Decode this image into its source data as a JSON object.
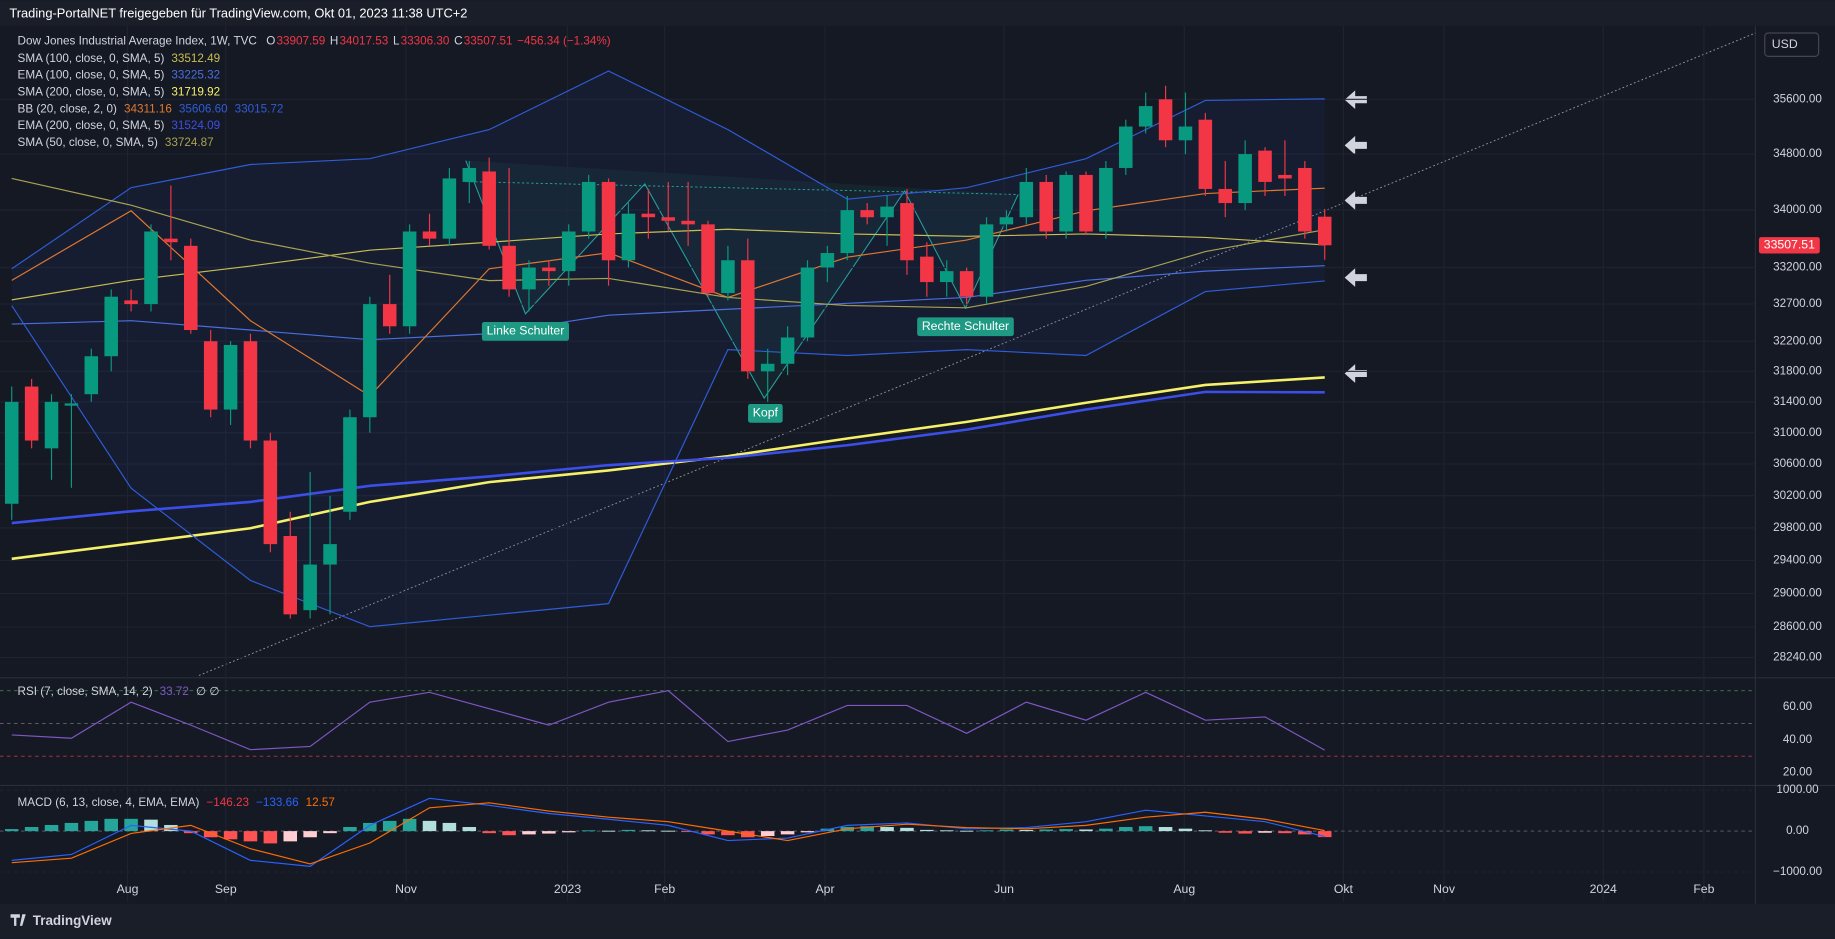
{
  "ui": {
    "header": "Trading-PortalNET freigegeben für TradingView.com, Okt 01, 2023 11:38 UTC+2",
    "currency": "USD",
    "brand": "TradingView"
  },
  "chart_data": {
    "type": "candlestick",
    "symbol": "Dow Jones Industrial Average Index, 1W, TVC",
    "ohlc_readout": [
      {
        "key": "O",
        "value": "33907.59"
      },
      {
        "key": "H",
        "value": "34017.53"
      },
      {
        "key": "L",
        "value": "33306.30"
      },
      {
        "key": "C",
        "value": "33507.51"
      }
    ],
    "change": "−456.34 (−1.34%)",
    "up_color": "#089981",
    "down_color": "#f23645",
    "open": [
      30100,
      31600,
      30800,
      31350,
      31500,
      32000,
      32750,
      32700,
      33600,
      33500,
      32200,
      31300,
      32200,
      30900,
      29700,
      28800,
      29350,
      30000,
      31200,
      32700,
      32400,
      33700,
      33600,
      34400,
      34550,
      33500,
      32900,
      33200,
      33150,
      33700,
      34400,
      33300,
      33950,
      33900,
      33850,
      33800,
      32850,
      33300,
      31800,
      31900,
      32250,
      33200,
      33400,
      34000,
      33900,
      34100,
      33350,
      33000,
      33150,
      32800,
      33800,
      33900,
      34400,
      33700,
      34500,
      33700,
      34600,
      35200,
      35600,
      35000,
      35300,
      34300,
      34100,
      34850,
      34500,
      34600,
      33907.59
    ],
    "high": [
      31600,
      31700,
      31500,
      31500,
      32100,
      32900,
      32900,
      33800,
      34350,
      33600,
      32350,
      32200,
      32300,
      31000,
      30000,
      30500,
      30200,
      31300,
      32800,
      33100,
      33800,
      33950,
      34600,
      34700,
      34750,
      34600,
      33300,
      33300,
      33800,
      34500,
      34450,
      34100,
      34300,
      34400,
      34400,
      33850,
      33500,
      33600,
      32100,
      32400,
      33300,
      33500,
      34200,
      34100,
      34200,
      34300,
      33550,
      33300,
      33200,
      33900,
      34000,
      34600,
      34500,
      34550,
      34550,
      34700,
      35300,
      35700,
      35800,
      35700,
      35400,
      34700,
      35000,
      34900,
      35000,
      34700,
      34017.53
    ],
    "low": [
      29900,
      30800,
      30400,
      30300,
      31400,
      31800,
      32600,
      32600,
      33300,
      32300,
      31200,
      31100,
      30800,
      29500,
      28700,
      28700,
      28750,
      29900,
      31000,
      32300,
      32300,
      33500,
      33500,
      34100,
      33450,
      32800,
      32600,
      32950,
      32950,
      33600,
      32950,
      33200,
      33600,
      33700,
      33500,
      32800,
      32750,
      31700,
      31400,
      31750,
      32200,
      33000,
      33300,
      33800,
      33500,
      33100,
      32800,
      32800,
      32700,
      32700,
      33700,
      33800,
      33600,
      33600,
      33650,
      33600,
      34500,
      35100,
      34900,
      34800,
      34200,
      33900,
      34000,
      34200,
      34200,
      33600,
      33306.3
    ],
    "close": [
      31400,
      30900,
      31400,
      31380,
      32000,
      32800,
      32700,
      33700,
      33550,
      32350,
      31300,
      32150,
      30900,
      29600,
      28750,
      29350,
      29600,
      31200,
      32700,
      32400,
      33700,
      33600,
      34450,
      34600,
      33500,
      32900,
      33200,
      33150,
      33700,
      34400,
      33300,
      33950,
      33900,
      33850,
      33800,
      32850,
      33300,
      31800,
      31900,
      32250,
      33200,
      33400,
      34000,
      33900,
      34050,
      33300,
      33000,
      33150,
      32800,
      33800,
      33900,
      34400,
      33700,
      34500,
      33700,
      34600,
      35200,
      35500,
      35000,
      35200,
      34300,
      34100,
      34800,
      34400,
      34450,
      33700,
      33507.51
    ],
    "log_scale": true,
    "ylim": [
      28030,
      36700
    ],
    "yticks": [
      {
        "value": 35600,
        "label": "35600.00"
      },
      {
        "value": 34800,
        "label": "34800.00"
      },
      {
        "value": 34000,
        "label": "34000.00"
      },
      {
        "value": 33200,
        "label": "33200.00"
      },
      {
        "value": 32700,
        "label": "32700.00"
      },
      {
        "value": 32200,
        "label": "32200.00"
      },
      {
        "value": 31800,
        "label": "31800.00"
      },
      {
        "value": 31400,
        "label": "31400.00"
      },
      {
        "value": 31000,
        "label": "31000.00"
      },
      {
        "value": 30600,
        "label": "30600.00"
      },
      {
        "value": 30200,
        "label": "30200.00"
      },
      {
        "value": 29800,
        "label": "29800.00"
      },
      {
        "value": 29400,
        "label": "29400.00"
      },
      {
        "value": 29000,
        "label": "29000.00"
      },
      {
        "value": 28600,
        "label": "28600.00"
      },
      {
        "value": 28240,
        "label": "28240.00"
      }
    ],
    "xlim": [
      -0.59,
      87.65
    ],
    "xticks": [
      {
        "value": 5.82,
        "label": "Aug"
      },
      {
        "value": 10.76,
        "label": "Sep"
      },
      {
        "value": 19.82,
        "label": "Nov"
      },
      {
        "value": 27.94,
        "label": "2023"
      },
      {
        "value": 32.82,
        "label": "Feb"
      },
      {
        "value": 40.88,
        "label": "Apr"
      },
      {
        "value": 49.88,
        "label": "Jun"
      },
      {
        "value": 58.94,
        "label": "Aug"
      },
      {
        "value": 66.94,
        "label": "Okt"
      },
      {
        "value": 72.0,
        "label": "Nov"
      },
      {
        "value": 80.0,
        "label": "2024"
      },
      {
        "value": 85.06,
        "label": "Feb"
      }
    ],
    "grid": true,
    "annotations": [
      "Linke Schulter",
      "Kopf",
      "Rechte Schulter"
    ],
    "overlay_x": [
      0,
      6,
      12,
      18,
      24,
      30,
      36,
      42,
      48,
      54,
      60,
      66
    ],
    "overlays": [
      {
        "name": "SMA (100, close, 0, SMA, 5)",
        "readout": "33512.49",
        "color": "#c8be52",
        "width": 1,
        "values": [
          32757,
          33024,
          33220,
          33440,
          33550,
          33666,
          33731,
          33666,
          33633,
          33666,
          33617,
          33512.49
        ]
      },
      {
        "name": "EMA (100, close, 0, SMA, 5)",
        "readout": "33225.32",
        "color": "#4a6ee0",
        "width": 1,
        "values": [
          32430,
          32475,
          32350,
          32220,
          32300,
          32550,
          32630,
          32710,
          32790,
          33024,
          33150,
          33225.32
        ]
      },
      {
        "name": "SMA (200, close, 0, SMA, 5)",
        "readout": "31719.92",
        "color": "#f5f06a",
        "width": 2.2,
        "values": [
          29420,
          29607,
          29796,
          30123,
          30371,
          30519,
          30701,
          30926,
          31140,
          31388,
          31621,
          31719.92
        ]
      },
      {
        "name": "BB (20, close, 2, 0)",
        "readouts": [
          "34311.16",
          "35606.60",
          "33015.72"
        ],
        "fill": "#2f5cd8",
        "lines": [
          {
            "color": "#e0782f",
            "width": 1,
            "values": [
              33024,
              33991,
              32475,
              31478,
              33183,
              33404,
              32790,
              33343,
              33580,
              33991,
              34235,
              34311.16
            ]
          },
          {
            "color": "#2f5cd8",
            "width": 1,
            "values": [
              33183,
              34318,
              34650,
              34734,
              35155,
              36020,
              35155,
              34155,
              34318,
              34734,
              35583,
              35606.6
            ]
          },
          {
            "color": "#2f5cd8",
            "width": 1,
            "values": [
              32680,
              30295,
              29157,
              28603,
              28740,
              28878,
              32088,
              32010,
              32088,
              32010,
              32870,
              33015.72
            ]
          }
        ]
      },
      {
        "name": "EMA (200, close, 0, SMA, 5)",
        "readout": "31524.09",
        "color": "#3b4fe8",
        "width": 2.2,
        "values": [
          29860,
          30006,
          30123,
          30325,
          30443,
          30586,
          30680,
          30840,
          31040,
          31300,
          31530,
          31524.09
        ]
      },
      {
        "name": "SMA (50, close, 0, SMA, 5)",
        "readout": "33724.87",
        "color": "#a8a252",
        "width": 1,
        "values": [
          34450,
          34070,
          33580,
          33260,
          33020,
          33050,
          32790,
          32680,
          32650,
          32940,
          33420,
          33724.87
        ]
      }
    ],
    "rsi": {
      "name": "RSI (7, close, SMA, 14, 2)",
      "readout": "33.72",
      "extra": "∅ ∅",
      "color": "#7e57c2",
      "x": [
        0,
        3,
        6,
        9,
        12,
        15,
        18,
        21,
        24,
        27,
        30,
        33,
        36,
        39,
        42,
        45,
        48,
        51,
        54,
        57,
        60,
        63,
        66
      ],
      "values": [
        43,
        41,
        63,
        49,
        34,
        36,
        63,
        69,
        59,
        49,
        63,
        70,
        39,
        46,
        61,
        61,
        44,
        63,
        52,
        69,
        52,
        54,
        33.72
      ],
      "ylim": [
        12.9,
        75
      ],
      "yticks": [
        {
          "value": 60,
          "label": "60.00"
        },
        {
          "value": 40,
          "label": "40.00"
        },
        {
          "value": 20,
          "label": "20.00"
        }
      ],
      "levels": [
        70,
        50,
        30
      ],
      "level_colors": [
        "#4caf50",
        "#787b86",
        "#f23645"
      ]
    },
    "macd": {
      "name": "MACD (6, 13, close, 4, EMA, EMA)",
      "readouts": [
        "−146.23",
        "−133.66",
        "12.57"
      ],
      "readout_colors": [
        "#f23645",
        "#2962ff",
        "#ff6d00"
      ],
      "x": [
        0,
        3,
        6,
        9,
        12,
        15,
        18,
        21,
        24,
        27,
        30,
        33,
        36,
        39,
        42,
        45,
        48,
        51,
        54,
        57,
        60,
        63,
        66
      ],
      "macd_line": [
        -714,
        -570,
        140,
        0,
        -714,
        -860,
        140,
        800,
        630,
        430,
        290,
        140,
        -230,
        -170,
        140,
        200,
        57,
        86,
        230,
        510,
        370,
        230,
        -133.66
      ],
      "signal": [
        -770,
        -660,
        -57,
        140,
        -430,
        -800,
        -290,
        570,
        690,
        490,
        340,
        230,
        0,
        -230,
        57,
        170,
        86,
        57,
        140,
        340,
        460,
        290,
        12.57
      ],
      "macd_color": "#2962ff",
      "signal_color": "#ff6d00",
      "histogram": [
        50,
        100,
        150,
        200,
        250,
        300,
        300,
        280,
        150,
        -50,
        -150,
        -200,
        -250,
        -300,
        -250,
        -150,
        -50,
        100,
        200,
        250,
        300,
        250,
        200,
        100,
        -50,
        -100,
        -80,
        -60,
        -30,
        20,
        10,
        30,
        20,
        10,
        -20,
        -80,
        -100,
        -150,
        -120,
        -80,
        -30,
        60,
        100,
        120,
        100,
        80,
        30,
        20,
        10,
        20,
        40,
        30,
        40,
        50,
        40,
        60,
        100,
        120,
        100,
        60,
        20,
        -40,
        -60,
        -40,
        -50,
        -80,
        -146.23
      ],
      "hist_colors": [
        "#26a69a",
        "#b2dfdb",
        "#ffcdd2",
        "#ff5252"
      ],
      "ylim": [
        -1714,
        1057
      ],
      "yticks": [
        {
          "value": 1000,
          "label": "1000.00"
        },
        {
          "value": 0,
          "label": "0.00"
        },
        {
          "value": -1000,
          "label": "−1000.00"
        }
      ]
    }
  }
}
